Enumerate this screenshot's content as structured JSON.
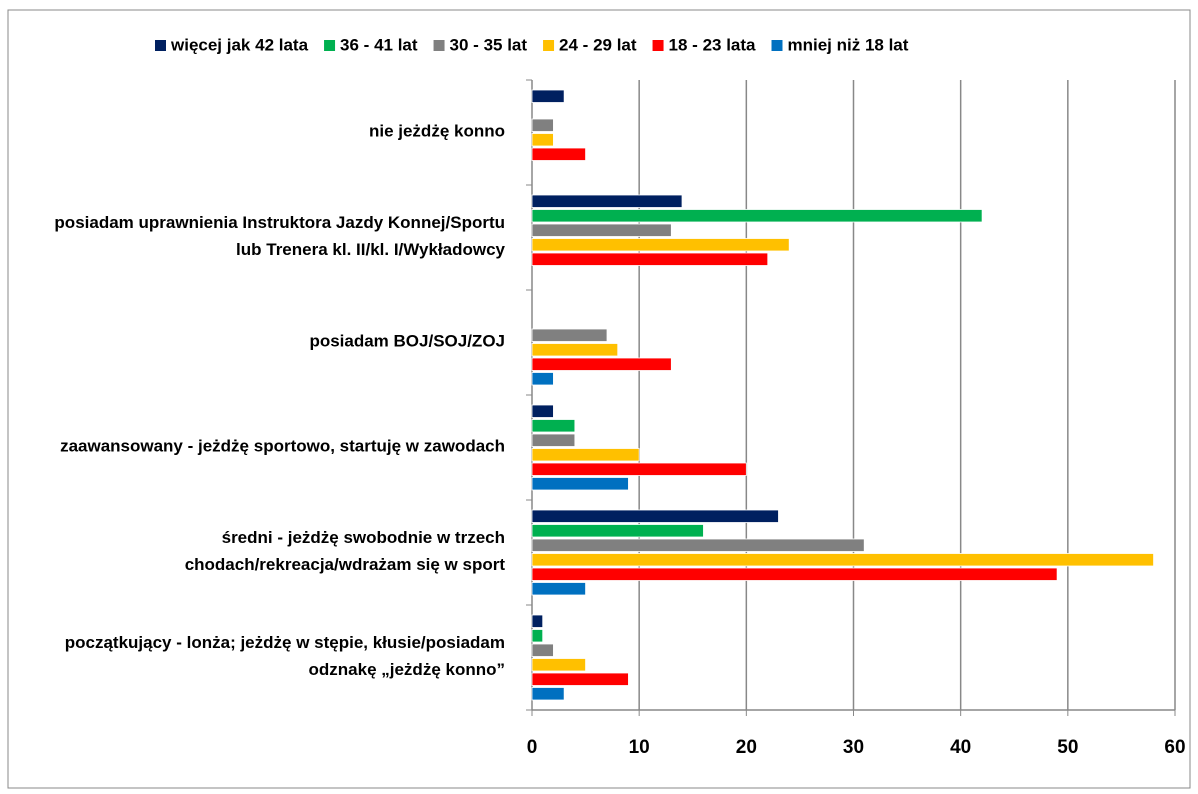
{
  "chart_data": {
    "type": "barh",
    "categories": [
      "nie jeżdżę konno",
      "posiadam uprawnienia Instruktora Jazdy Konnej/Sportu lub Trenera kl. II/kl. I/Wykładowcy",
      "posiadam BOJ/SOJ/ZOJ",
      "zaawansowany - jeżdżę sportowo, startuję w zawodach",
      "średni - jeżdżę swobodnie w trzech chodach/rekreacja/wdrażam się w sport",
      "początkujący - lonża; jeżdżę w stępie, kłusie/posiadam odznakę „jeżdżę konno”"
    ],
    "series": [
      {
        "name": "więcej jak 42 lata",
        "color": "#002060",
        "values": [
          3,
          14,
          0,
          2,
          23,
          1
        ]
      },
      {
        "name": "36 - 41 lat",
        "color": "#00b050",
        "values": [
          0,
          42,
          0,
          4,
          16,
          1
        ]
      },
      {
        "name": "30 - 35 lat",
        "color": "#808080",
        "values": [
          2,
          13,
          7,
          4,
          31,
          2
        ]
      },
      {
        "name": "24 - 29 lat",
        "color": "#ffc000",
        "values": [
          2,
          24,
          8,
          10,
          58,
          5
        ]
      },
      {
        "name": "18 - 23 lata",
        "color": "#ff0000",
        "values": [
          5,
          22,
          13,
          20,
          49,
          9
        ]
      },
      {
        "name": "mniej niż 18 lat",
        "color": "#0070c0",
        "values": [
          0,
          0,
          2,
          9,
          5,
          3
        ]
      }
    ],
    "xlim": [
      0,
      60
    ],
    "xticks": [
      0,
      10,
      20,
      30,
      40,
      50,
      60
    ],
    "grid": true,
    "legend": "top"
  }
}
